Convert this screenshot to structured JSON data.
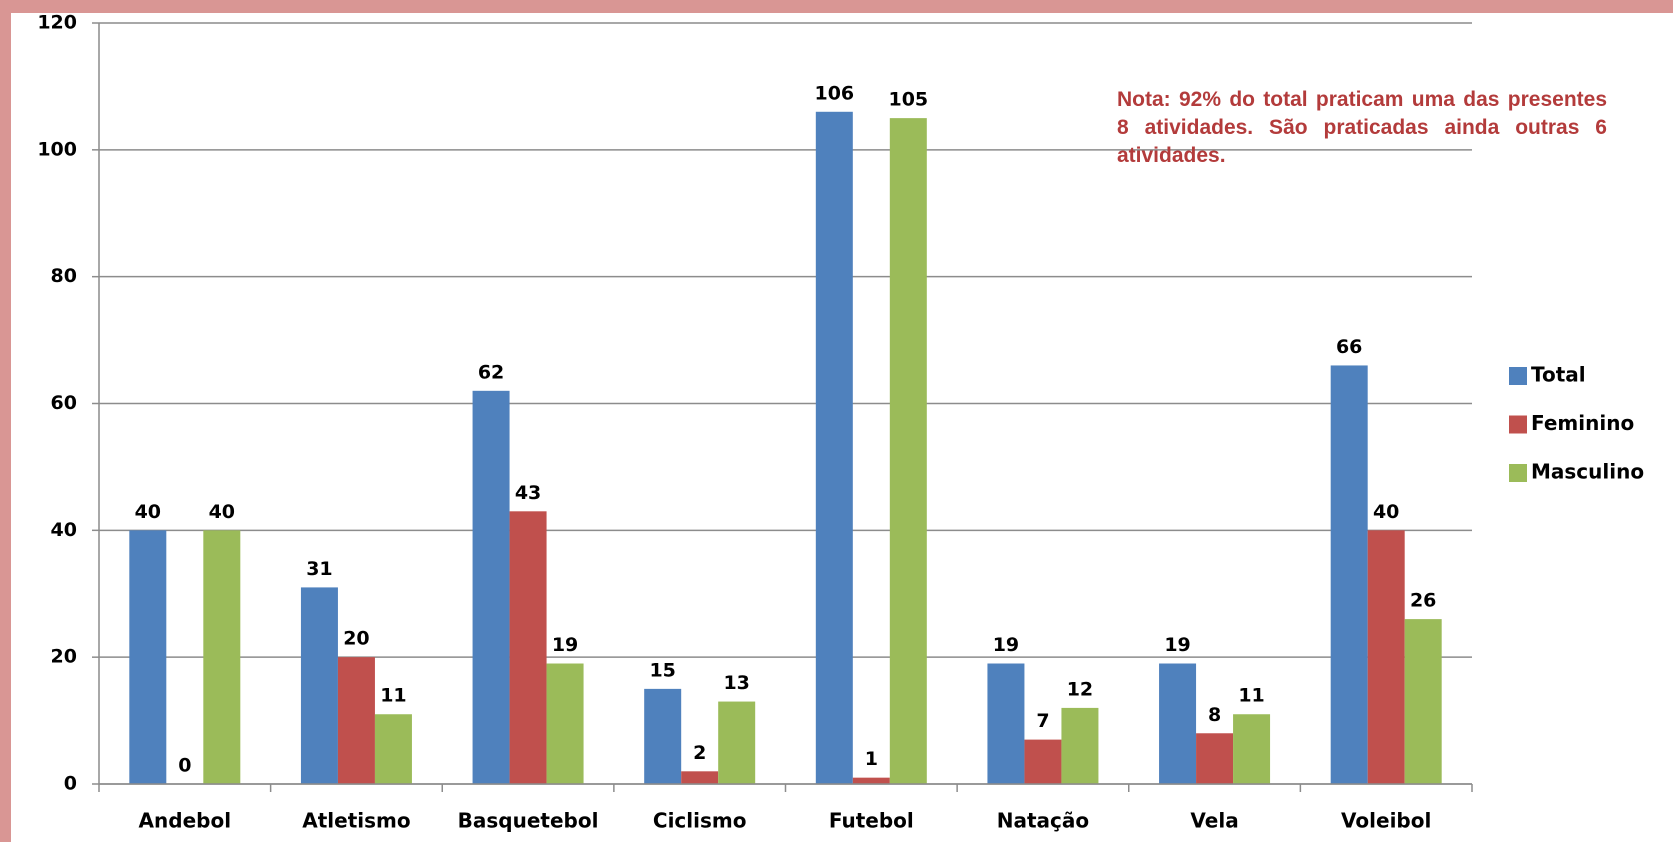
{
  "chart_data": {
    "type": "bar",
    "categories": [
      "Andebol",
      "Atletismo",
      "Basquetebol",
      "Ciclismo",
      "Futebol",
      "Natação",
      "Vela",
      "Voleibol"
    ],
    "series": [
      {
        "name": "Total",
        "color": "#4f81bd",
        "values": [
          40,
          31,
          62,
          15,
          106,
          19,
          19,
          66
        ]
      },
      {
        "name": "Feminino",
        "color": "#c0504d",
        "values": [
          0,
          20,
          43,
          2,
          1,
          7,
          8,
          40
        ]
      },
      {
        "name": "Masculino",
        "color": "#9bbb59",
        "values": [
          40,
          11,
          19,
          13,
          105,
          12,
          11,
          26
        ]
      }
    ],
    "ylim": [
      0,
      120
    ],
    "yticks": [
      0,
      20,
      40,
      60,
      80,
      100,
      120
    ],
    "grid": true,
    "legend": "right",
    "annotation": "Nota: 92% do total praticam uma das presentes 8 atividades. São praticadas ainda outras 6 atividades."
  }
}
